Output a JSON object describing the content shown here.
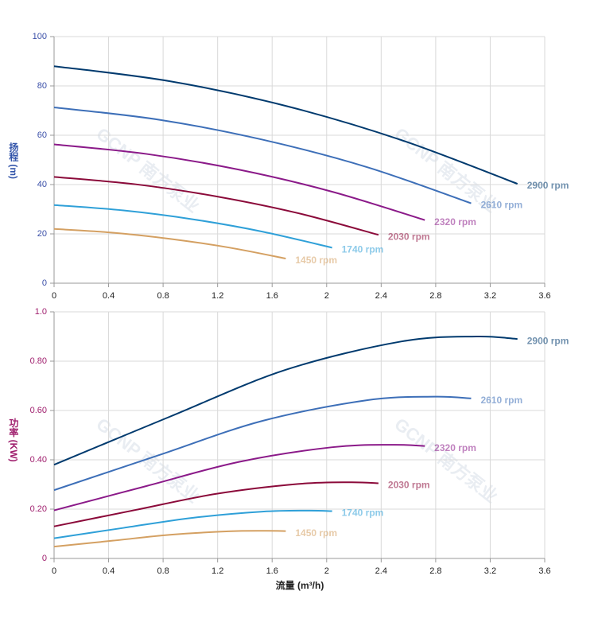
{
  "watermark": "GCNP 南方泵业",
  "chart_data": [
    {
      "type": "line",
      "ylabel": "扬程 (m)",
      "xlim": [
        0,
        3.6
      ],
      "xticks": [
        0,
        0.4,
        0.8,
        1.2,
        1.6,
        2,
        2.4,
        2.8,
        3.2,
        3.6
      ],
      "ylim": [
        0,
        100
      ],
      "yticks": [
        0,
        20,
        40,
        60,
        80,
        100
      ],
      "grid": true,
      "series": [
        {
          "name": "2900 rpm",
          "color": "#003a6e",
          "x": [
            0,
            0.85,
            1.7,
            2.55,
            3.4
          ],
          "values": [
            88,
            81.9,
            71.9,
            58,
            40.3
          ]
        },
        {
          "name": "2610 rpm",
          "color": "#3d6fb8",
          "x": [
            0,
            0.77,
            1.53,
            2.3,
            3.06
          ],
          "values": [
            71.3,
            66.3,
            58.2,
            47,
            32.4
          ]
        },
        {
          "name": "2320 rpm",
          "color": "#8b1a89",
          "x": [
            0,
            0.68,
            1.36,
            2.04,
            2.72
          ],
          "values": [
            56.3,
            52.4,
            46,
            37.1,
            25.6
          ]
        },
        {
          "name": "2030 rpm",
          "color": "#8b0a3a",
          "x": [
            0,
            0.6,
            1.19,
            1.79,
            2.38
          ],
          "values": [
            43.1,
            40.1,
            35.2,
            28.4,
            19.6
          ]
        },
        {
          "name": "1740 rpm",
          "color": "#2fa0d8",
          "x": [
            0,
            0.51,
            1.02,
            1.53,
            2.04
          ],
          "values": [
            31.7,
            29.5,
            25.9,
            20.9,
            14.4
          ]
        },
        {
          "name": "1450 rpm",
          "color": "#d4a062",
          "x": [
            0,
            0.43,
            0.85,
            1.28,
            1.7
          ],
          "values": [
            22,
            20.5,
            18,
            14.5,
            10
          ]
        }
      ]
    },
    {
      "type": "line",
      "ylabel": "功率 (KW)",
      "xlabel": "流量 (m³/h)",
      "xlim": [
        0,
        3.6
      ],
      "xticks": [
        0,
        0.4,
        0.8,
        1.2,
        1.6,
        2,
        2.4,
        2.8,
        3.2,
        3.6
      ],
      "ylim": [
        0,
        1
      ],
      "yticks": [
        0,
        {
          "value": 0.2,
          "label": "0.20"
        },
        {
          "value": 0.4,
          "label": "0.40"
        },
        {
          "value": 0.6,
          "label": "0.60"
        },
        {
          "value": 0.8,
          "label": "0.80"
        },
        {
          "value": 1,
          "label": "1.0"
        }
      ],
      "grid": true,
      "series": [
        {
          "name": "2900 rpm",
          "color": "#003a6e",
          "x": [
            0,
            0.85,
            1.7,
            2.55,
            3.1,
            3.4
          ],
          "values": [
            0.38,
            0.575,
            0.765,
            0.88,
            0.9,
            0.89
          ]
        },
        {
          "name": "2610 rpm",
          "color": "#3d6fb8",
          "x": [
            0,
            0.77,
            1.53,
            2.3,
            2.79,
            3.06
          ],
          "values": [
            0.277,
            0.419,
            0.558,
            0.642,
            0.656,
            0.649
          ]
        },
        {
          "name": "2320 rpm",
          "color": "#8b1a89",
          "x": [
            0,
            0.68,
            1.36,
            2.04,
            2.48,
            2.72
          ],
          "values": [
            0.195,
            0.294,
            0.392,
            0.451,
            0.461,
            0.456
          ]
        },
        {
          "name": "2030 rpm",
          "color": "#8b0a3a",
          "x": [
            0,
            0.6,
            1.19,
            1.79,
            2.17,
            2.38
          ],
          "values": [
            0.13,
            0.197,
            0.262,
            0.302,
            0.309,
            0.305
          ]
        },
        {
          "name": "1740 rpm",
          "color": "#2fa0d8",
          "x": [
            0,
            0.51,
            1.02,
            1.53,
            1.86,
            2.04
          ],
          "values": [
            0.082,
            0.124,
            0.165,
            0.19,
            0.194,
            0.192
          ]
        },
        {
          "name": "1450 rpm",
          "color": "#d4a062",
          "x": [
            0,
            0.43,
            0.85,
            1.28,
            1.55,
            1.7
          ],
          "values": [
            0.048,
            0.072,
            0.096,
            0.11,
            0.112,
            0.111
          ]
        }
      ]
    }
  ]
}
